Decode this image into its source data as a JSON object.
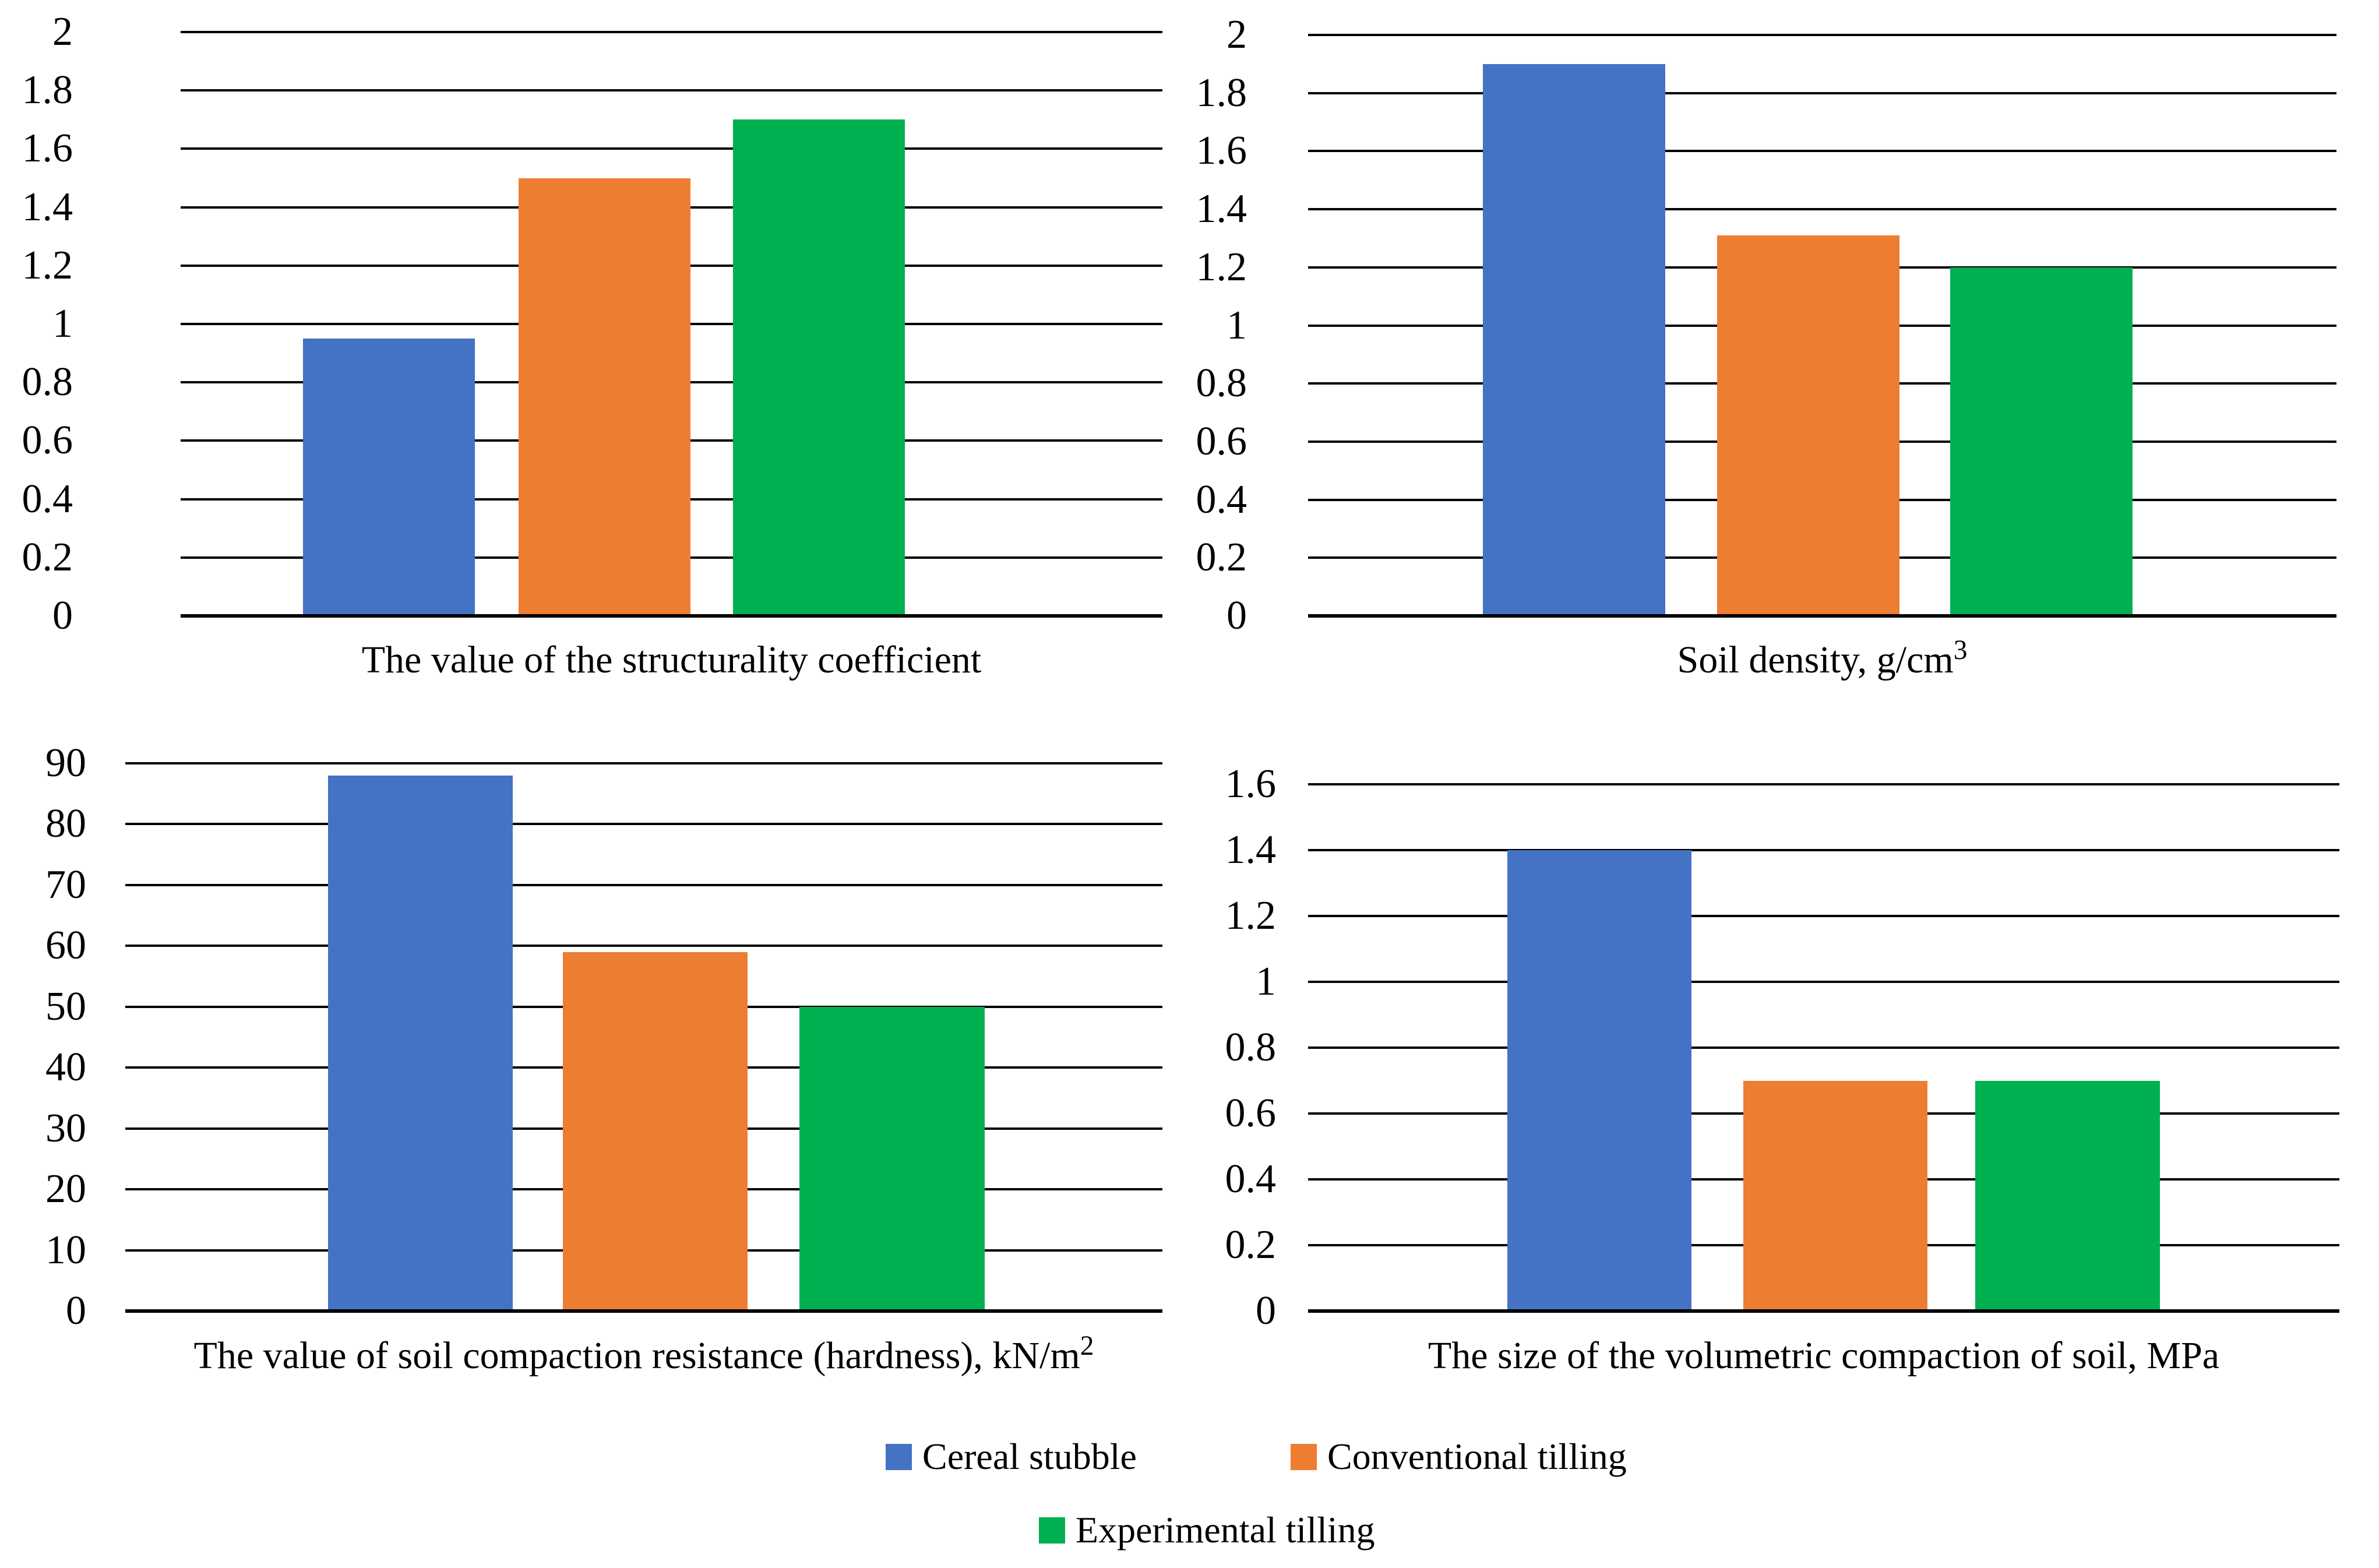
{
  "colors": {
    "cereal_stubble": "#4472C4",
    "conventional_tilling": "#ED7D31",
    "experimental_tilling": "#00B050",
    "gridline": "#000000",
    "text": "#000000"
  },
  "legend": {
    "items": [
      {
        "label": "Cereal stubble",
        "color_key": "cereal_stubble"
      },
      {
        "label": "Conventional tilling",
        "color_key": "conventional_tilling"
      },
      {
        "label": "Experimental tilling",
        "color_key": "experimental_tilling"
      }
    ],
    "position": "bottom-center, two rows"
  },
  "chart_data": [
    {
      "type": "bar",
      "title": "The value of the structurality coefficient",
      "title_sup": "",
      "categories": [
        "Cereal stubble",
        "Conventional tilling",
        "Experimental tilling"
      ],
      "values": [
        0.95,
        1.5,
        1.7
      ],
      "xlabel": "",
      "ylabel": "",
      "ylim": [
        0,
        2
      ],
      "ytick_step": 0.2,
      "grid": true,
      "legend_position": "shared-bottom"
    },
    {
      "type": "bar",
      "title": "Soil density, g/cm",
      "title_sup": "3",
      "categories": [
        "Cereal stubble",
        "Conventional tilling",
        "Experimental tilling"
      ],
      "values": [
        1.9,
        1.31,
        1.2
      ],
      "xlabel": "",
      "ylabel": "",
      "ylim": [
        0,
        2
      ],
      "ytick_step": 0.2,
      "grid": true,
      "legend_position": "shared-bottom"
    },
    {
      "type": "bar",
      "title": "The value of soil compaction resistance (hardness), kN/m",
      "title_sup": "2",
      "categories": [
        "Cereal stubble",
        "Conventional tilling",
        "Experimental tilling"
      ],
      "values": [
        88,
        59,
        50
      ],
      "xlabel": "",
      "ylabel": "",
      "ylim": [
        0,
        90
      ],
      "ytick_step": 10,
      "grid": true,
      "legend_position": "shared-bottom"
    },
    {
      "type": "bar",
      "title": "The size of the volumetric compaction of soil, MPa",
      "title_sup": "",
      "categories": [
        "Cereal stubble",
        "Conventional tilling",
        "Experimental tilling"
      ],
      "values": [
        1.4,
        0.7,
        0.7
      ],
      "xlabel": "",
      "ylabel": "",
      "ylim": [
        0,
        1.6
      ],
      "ytick_step": 0.2,
      "grid": true,
      "legend_position": "shared-bottom"
    }
  ]
}
